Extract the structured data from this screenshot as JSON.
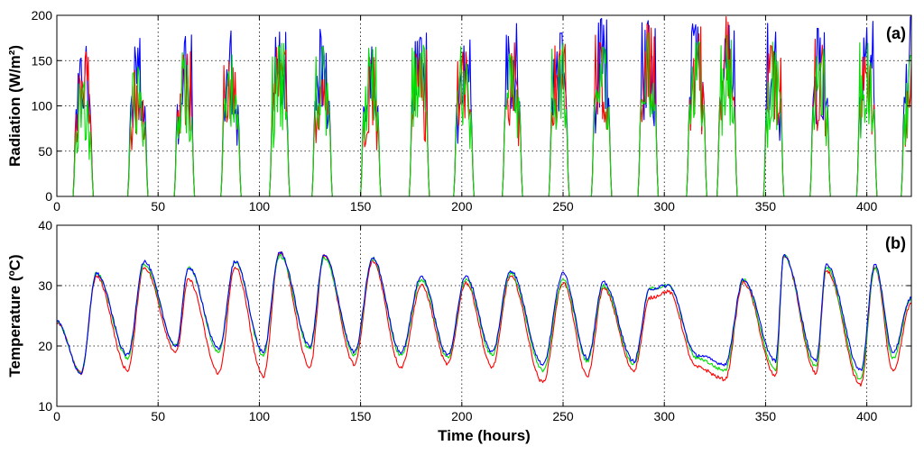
{
  "chart_data": [
    {
      "type": "line",
      "panel_label": "(a)",
      "ylabel": "Radiation (W/m²)",
      "xlabel": "",
      "xlim": [
        0,
        422
      ],
      "ylim": [
        0,
        200
      ],
      "xticks": [
        0,
        50,
        100,
        150,
        200,
        250,
        300,
        350,
        400
      ],
      "yticks": [
        0,
        50,
        100,
        150,
        200
      ],
      "grid": true,
      "day_centers_h": [
        13,
        40,
        63,
        86,
        110,
        131,
        155,
        179,
        201,
        225,
        248,
        269,
        292,
        316,
        331,
        354,
        377,
        400,
        422
      ],
      "series": [
        {
          "name": "blue",
          "color": "#0000ff",
          "daily_peaks": [
            175,
            182,
            185,
            184,
            190,
            192,
            181,
            182,
            187,
            191,
            198,
            198,
            200,
            200,
            200,
            196,
            198,
            200,
            200
          ]
        },
        {
          "name": "red",
          "color": "#ff0000",
          "daily_peaks": [
            165,
            140,
            165,
            150,
            165,
            172,
            160,
            165,
            165,
            180,
            170,
            180,
            195,
            195,
            200,
            168,
            175,
            185,
            165
          ]
        },
        {
          "name": "green",
          "color": "#00dd00",
          "daily_peaks": [
            130,
            150,
            160,
            165,
            170,
            168,
            170,
            170,
            170,
            180,
            175,
            180,
            185,
            185,
            180,
            175,
            180,
            175,
            165
          ]
        }
      ]
    },
    {
      "type": "line",
      "panel_label": "(b)",
      "ylabel": "Temperature (ºC)",
      "xlabel": "Time (hours)",
      "xlim": [
        0,
        422
      ],
      "ylim": [
        10,
        40
      ],
      "xticks": [
        0,
        50,
        100,
        150,
        200,
        250,
        300,
        350,
        400
      ],
      "yticks": [
        10,
        20,
        30,
        40
      ],
      "grid": true,
      "extrema_times_h": [
        0,
        12,
        19.5,
        35,
        43,
        59,
        65,
        80,
        88,
        102,
        110,
        125,
        132,
        147,
        156,
        170,
        180,
        193,
        202,
        215,
        224,
        240,
        250,
        262,
        270,
        285,
        293,
        302,
        316,
        330,
        339,
        355,
        359,
        375,
        380,
        397,
        404,
        413,
        422
      ],
      "series": [
        {
          "name": "red",
          "color": "#ff0000",
          "values": [
            24,
            15.5,
            31.5,
            16,
            33,
            19,
            31,
            15.5,
            33,
            15,
            35.5,
            16.5,
            35,
            17,
            34,
            16.5,
            30,
            17,
            30.5,
            16.5,
            31.5,
            14,
            30.5,
            15,
            29.5,
            16,
            28,
            29,
            16.5,
            14.5,
            30.5,
            15,
            35,
            15.5,
            32.5,
            13.5,
            33,
            16,
            27
          ]
        },
        {
          "name": "green",
          "color": "#00dd00",
          "values": [
            24,
            15.5,
            32,
            18,
            33.5,
            20,
            33,
            19,
            34,
            18.5,
            35,
            19.5,
            34.5,
            18.5,
            34.5,
            18.5,
            31,
            18,
            31,
            18.5,
            32,
            16,
            31,
            17.5,
            30,
            17,
            29.5,
            30,
            18,
            16,
            31,
            16,
            35,
            16.5,
            33,
            14.5,
            33,
            18,
            28
          ]
        },
        {
          "name": "blue",
          "color": "#0000ff",
          "values": [
            24,
            15.5,
            32,
            18.5,
            34,
            20,
            33,
            19.5,
            34,
            19,
            35.5,
            20,
            35,
            19,
            34.5,
            19,
            31.5,
            18.5,
            31.5,
            19,
            32.5,
            17,
            32,
            18,
            30.5,
            17.5,
            29.5,
            30,
            18.5,
            17,
            31,
            17.5,
            35,
            17.5,
            33.5,
            16,
            33.5,
            19,
            28
          ]
        }
      ]
    }
  ]
}
